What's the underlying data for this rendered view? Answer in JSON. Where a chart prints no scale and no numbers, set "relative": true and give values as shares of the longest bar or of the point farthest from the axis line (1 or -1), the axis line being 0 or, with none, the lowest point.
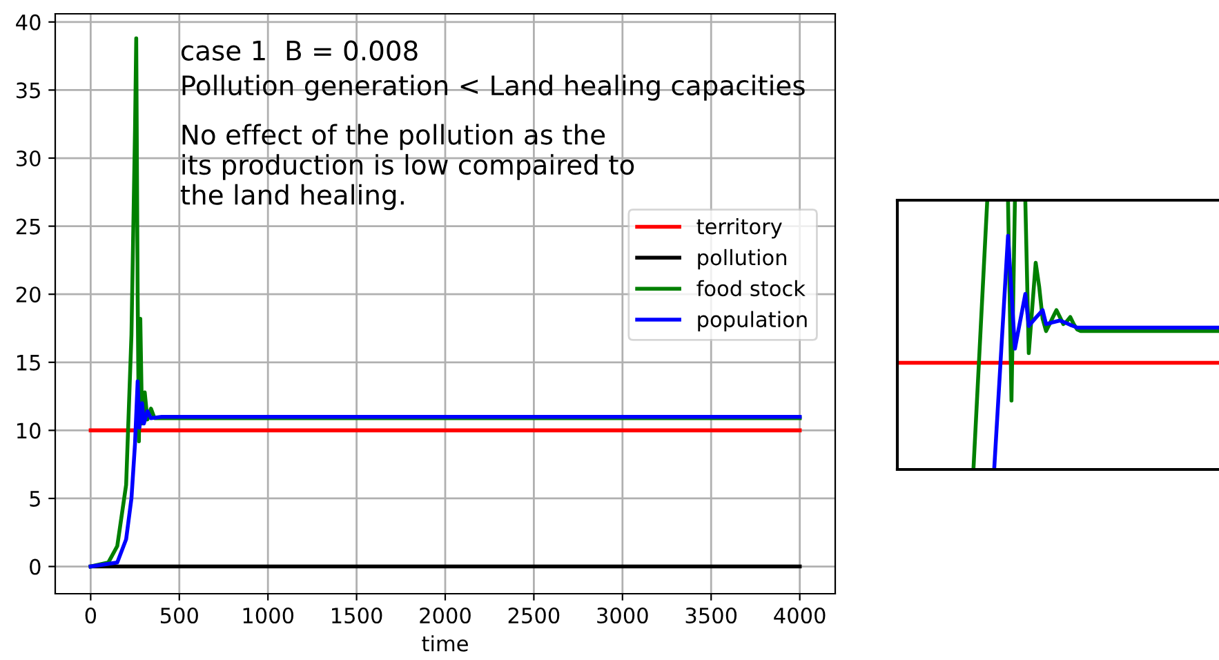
{
  "chart_data": [
    {
      "type": "line",
      "xlabel": "time",
      "xlim": [
        -200,
        4200
      ],
      "ylim": [
        -2,
        40.6
      ],
      "xticks": [
        0,
        500,
        1000,
        1500,
        2000,
        2500,
        3000,
        3500,
        4000
      ],
      "yticks": [
        0,
        5,
        10,
        15,
        20,
        25,
        30,
        35,
        40
      ],
      "grid": true,
      "legend": "center right",
      "annotations": [
        "case 1  B = 0.008",
        "Pollution generation < Land healing capacities",
        "No effect of the pollution as the\nits production is low compaired to\nthe land healing."
      ],
      "series": [
        {
          "name": "territory",
          "color": "#ff0000",
          "x": [
            0,
            4000
          ],
          "values": [
            10,
            10
          ]
        },
        {
          "name": "pollution",
          "color": "#000000",
          "x": [
            0,
            4000
          ],
          "values": [
            0,
            0
          ]
        },
        {
          "name": "food stock",
          "color": "#008000",
          "x": [
            0,
            100,
            150,
            200,
            230,
            250,
            257,
            265,
            272,
            280,
            290,
            305,
            320,
            340,
            360,
            400,
            4000
          ],
          "values": [
            0,
            0.3,
            1.5,
            6,
            17,
            32,
            38.8,
            20,
            9.2,
            18.2,
            10.5,
            12.8,
            10.8,
            11.6,
            10.9,
            10.9,
            10.9
          ]
        },
        {
          "name": "population",
          "color": "#0000ff",
          "x": [
            0,
            150,
            200,
            230,
            250,
            265,
            275,
            290,
            300,
            320,
            340,
            400,
            4000
          ],
          "values": [
            0,
            0.3,
            2,
            5,
            9,
            13.6,
            10.2,
            12,
            10.5,
            11.4,
            10.9,
            11,
            11
          ]
        }
      ]
    },
    {
      "type": "line",
      "relative": true,
      "tick_labels": false,
      "categories": [
        null,
        null,
        null,
        null,
        null,
        null,
        null,
        null,
        null,
        null,
        null,
        null,
        null,
        null,
        null,
        null,
        null,
        null,
        null,
        null,
        null,
        null,
        null,
        null,
        null,
        null,
        null,
        null,
        null,
        null,
        null,
        null,
        null,
        null,
        null,
        null,
        null,
        null,
        null,
        null,
        null,
        null,
        null,
        null,
        null,
        null,
        null,
        null,
        null,
        null,
        null,
        null,
        null,
        null,
        null,
        null,
        null,
        null,
        null,
        null,
        null,
        null,
        null,
        null,
        null,
        null,
        null,
        null,
        null,
        null,
        null,
        null,
        null,
        null,
        null,
        null,
        null,
        null,
        null,
        null,
        null,
        null,
        null,
        null,
        null,
        null,
        null,
        null,
        null,
        null,
        null,
        null,
        null,
        null
      ],
      "series": [
        {
          "color": "#ff0000",
          "values": [
            0.396,
            0.396,
            0.396,
            0.396,
            0.396,
            0.396,
            0.396,
            0.396,
            0.396,
            0.396,
            0.396,
            0.396,
            0.396,
            0.396,
            0.396,
            0.396,
            0.396,
            0.396,
            0.396,
            0.396,
            0.396,
            0.396,
            0.396,
            0.396,
            0.396,
            0.396,
            0.396,
            0.396,
            0.396,
            0.396,
            0.396,
            0.396,
            0.396,
            0.396,
            0.396,
            0.396,
            0.396,
            0.396,
            0.396,
            0.396,
            0.396,
            0.396,
            0.396,
            0.396,
            0.396,
            0.396,
            0.396,
            0.396,
            0.396,
            0.396,
            0.396,
            0.396,
            0.396,
            0.396,
            0.396,
            0.396,
            0.396,
            0.396,
            0.396,
            0.396,
            0.396,
            0.396,
            0.396,
            0.396,
            0.396,
            0.396,
            0.396,
            0.396,
            0.396,
            0.396,
            0.396,
            0.396,
            0.396,
            0.396,
            0.396,
            0.396,
            0.396,
            0.396,
            0.396,
            0.396,
            0.396,
            0.396,
            0.396,
            0.396,
            0.396,
            0.396,
            0.396,
            0.396,
            0.396,
            0.396,
            0.396,
            0.396,
            0.396,
            0.396
          ]
        },
        {
          "color": "#008000",
          "values": [
            null,
            null,
            null,
            null,
            null,
            null,
            null,
            null,
            null,
            null,
            null,
            null,
            null,
            null,
            null,
            null,
            null,
            null,
            null,
            null,
            null,
            null,
            0,
            0.25,
            0.5,
            0.75,
            1.0,
            null,
            null,
            null,
            null,
            null,
            1.0,
            0.256,
            1.0,
            null,
            null,
            1.0,
            0.432,
            0.6,
            0.768,
            0.68,
            0.56,
            0.514,
            0.54,
            0.566,
            0.592,
            0.566,
            0.54,
            0.55,
            0.566,
            0.54,
            0.52,
            0.514,
            0.514,
            0.514,
            0.514,
            0.514,
            0.514,
            0.514,
            0.514,
            0.514,
            0.514,
            0.514,
            0.514,
            0.514,
            0.514,
            0.514,
            0.514,
            0.514,
            0.514,
            0.514,
            0.514,
            0.514,
            0.514,
            0.514,
            0.514,
            0.514,
            0.514,
            0.514,
            0.514,
            0.514,
            0.514,
            0.514,
            0.514,
            0.514,
            0.514,
            0.514,
            0.514,
            0.514,
            0.514,
            0.514,
            0.514,
            0.514
          ]
        },
        {
          "color": "#0000ff",
          "values": [
            null,
            null,
            null,
            null,
            null,
            null,
            null,
            null,
            null,
            null,
            null,
            null,
            null,
            null,
            null,
            null,
            null,
            null,
            null,
            null,
            null,
            null,
            null,
            null,
            null,
            null,
            null,
            null,
            0,
            0.217,
            0.434,
            0.651,
            0.868,
            0.659,
            0.449,
            0.517,
            0.584,
            0.652,
            0.533,
            0.548,
            0.563,
            0.577,
            0.592,
            0.54,
            0.543,
            0.547,
            0.55,
            0.553,
            0.548,
            0.543,
            0.537,
            0.532,
            0.527,
            0.527,
            0.527,
            0.527,
            0.527,
            0.527,
            0.527,
            0.527,
            0.527,
            0.527,
            0.527,
            0.527,
            0.527,
            0.527,
            0.527,
            0.527,
            0.527,
            0.527,
            0.527,
            0.527,
            0.527,
            0.527,
            0.527,
            0.527,
            0.527,
            0.527,
            0.527,
            0.527,
            0.527,
            0.527,
            0.527,
            0.527,
            0.527,
            0.527,
            0.527,
            0.527,
            0.527,
            0.527,
            0.527,
            0.527,
            0.527,
            0.527
          ]
        }
      ]
    }
  ]
}
